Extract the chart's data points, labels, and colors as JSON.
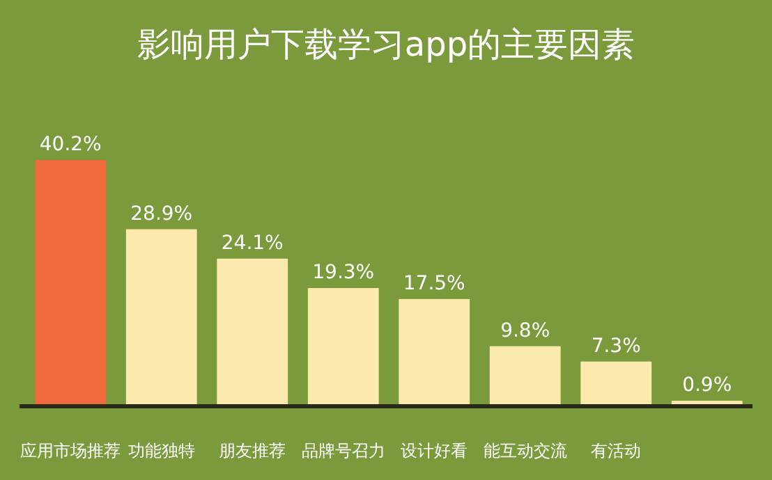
{
  "chart_data": {
    "type": "bar",
    "title": "影响用户下载学习app的主要因素",
    "categories": [
      "应用市场推荐",
      "功能独特",
      "朋友推荐",
      "品牌号召力",
      "设计好看",
      "能互动交流",
      "有活动",
      null
    ],
    "values": [
      40.2,
      28.9,
      24.1,
      19.3,
      17.5,
      9.8,
      7.3,
      0.9
    ],
    "colors": [
      "#ef6a3c",
      "#fbe9ad",
      "#fbe9ad",
      "#fbe9ad",
      "#fbe9ad",
      "#fbe9ad",
      "#fbe9ad",
      "#fbe9ad"
    ],
    "value_labels": [
      "40.2%",
      "28.9%",
      "24.1%",
      "19.3%",
      "17.5%",
      "9.8%",
      "7.3%",
      "0.9%"
    ]
  }
}
